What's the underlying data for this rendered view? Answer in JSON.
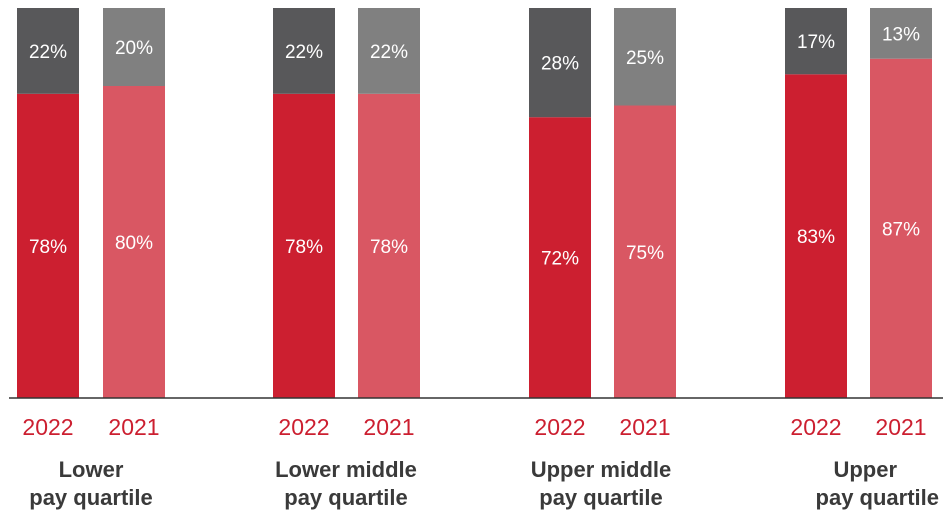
{
  "chart_data": {
    "type": "bar",
    "stacked": true,
    "ylim": [
      0,
      100
    ],
    "grid": false,
    "groups": [
      {
        "label_lines": [
          "Lower",
          "pay quartile"
        ],
        "bars": [
          {
            "year": "2022",
            "bottom": 78,
            "top": 22,
            "bottom_label": "78%",
            "top_label": "22%"
          },
          {
            "year": "2021",
            "bottom": 80,
            "top": 20,
            "bottom_label": "80%",
            "top_label": "20%"
          }
        ]
      },
      {
        "label_lines": [
          "Lower middle",
          "pay quartile"
        ],
        "bars": [
          {
            "year": "2022",
            "bottom": 78,
            "top": 22,
            "bottom_label": "78%",
            "top_label": "22%"
          },
          {
            "year": "2021",
            "bottom": 78,
            "top": 22,
            "bottom_label": "78%",
            "top_label": "22%"
          }
        ]
      },
      {
        "label_lines": [
          "Upper middle",
          "pay quartile"
        ],
        "bars": [
          {
            "year": "2022",
            "bottom": 72,
            "top": 28,
            "bottom_label": "72%",
            "top_label": "28%"
          },
          {
            "year": "2021",
            "bottom": 75,
            "top": 25,
            "bottom_label": "75%",
            "top_label": "25%"
          }
        ]
      },
      {
        "label_lines": [
          "Upper",
          "pay quartile"
        ],
        "bars": [
          {
            "year": "2022",
            "bottom": 83,
            "top": 17,
            "bottom_label": "83%",
            "top_label": "17%"
          },
          {
            "year": "2021",
            "bottom": 87,
            "top": 13,
            "bottom_label": "87%",
            "top_label": "13%"
          }
        ]
      }
    ],
    "colors": {
      "bottom_2022": "#cc1f30",
      "bottom_2021": "#d95763",
      "top_2022": "#58585a",
      "top_2021": "#808080",
      "year_label": "#cc1f30",
      "value_label": "#ffffff",
      "axis": "#333333"
    }
  }
}
